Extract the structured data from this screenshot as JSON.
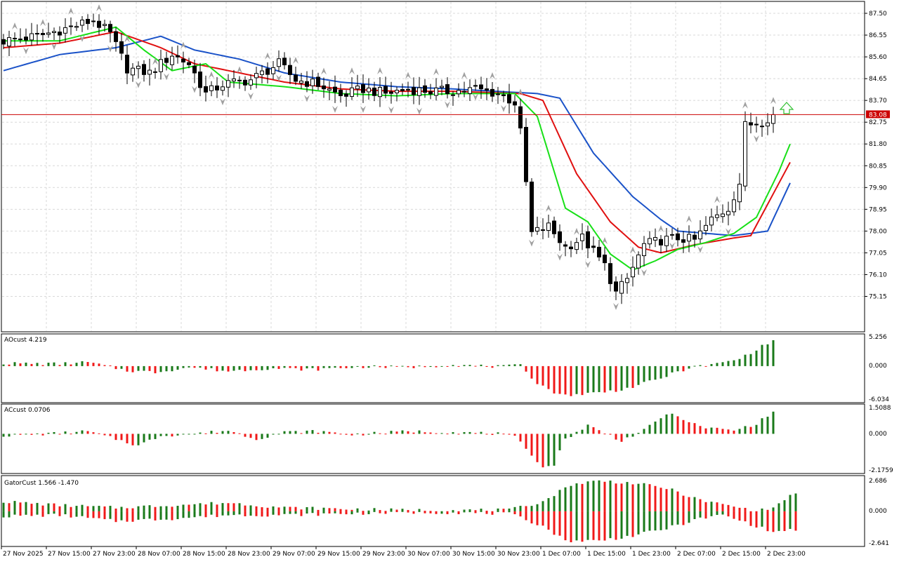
{
  "colors": {
    "background": "#ffffff",
    "grid": "#d8d8d8",
    "frame": "#000000",
    "bull_candle": "#ffffff",
    "bear_candle": "#000000",
    "jaw": "#1a52c8",
    "teeth": "#e01010",
    "lips": "#18e018",
    "price_line": "#cc0000",
    "price_tag": "#cc0000",
    "histo_up": "#1a7a1a",
    "histo_down": "#f01818",
    "fractal": "#a0a0a0",
    "signal_arrow": "#30c030"
  },
  "main_panel": {
    "price_tag": "83.08",
    "y_ticks": [
      "87.50",
      "86.55",
      "85.60",
      "84.65",
      "83.70",
      "82.75",
      "81.80",
      "80.85",
      "79.90",
      "78.95",
      "78.00",
      "77.05",
      "76.10",
      "75.15"
    ]
  },
  "ao_panel": {
    "label": "AOcust 4.219",
    "y_ticks": [
      "5.256",
      "0.000",
      "-6.034"
    ]
  },
  "ac_panel": {
    "label": "ACcust 0.0706",
    "y_ticks": [
      "1.5088",
      "0.000",
      "-2.1759"
    ]
  },
  "gator_panel": {
    "label": "GatorCust 1.566 -1.470",
    "y_ticks": [
      "2.686",
      "0.000",
      "-2.641"
    ]
  },
  "x_axis": {
    "labels": [
      "27 Nov 2025",
      "27 Nov 15:00",
      "27 Nov 23:00",
      "28 Nov 07:00",
      "28 Nov 15:00",
      "28 Nov 23:00",
      "29 Nov 07:00",
      "29 Nov 15:00",
      "29 Nov 23:00",
      "30 Nov 07:00",
      "30 Nov 15:00",
      "30 Nov 23:00",
      "1 Dec 07:00",
      "1 Dec 15:00",
      "1 Dec 23:00",
      "2 Dec 07:00",
      "2 Dec 15:00",
      "2 Dec 23:00"
    ]
  },
  "chart_data": [
    {
      "type": "candlestick",
      "name": "price",
      "ylim": [
        74.7,
        87.9
      ],
      "bars_count": 141,
      "close_anchors": [
        [
          0,
          86.3
        ],
        [
          6,
          86.5
        ],
        [
          12,
          86.9
        ],
        [
          16,
          87.2
        ],
        [
          19,
          86.6
        ],
        [
          22,
          85.1
        ],
        [
          26,
          84.9
        ],
        [
          30,
          85.7
        ],
        [
          33,
          85.3
        ],
        [
          36,
          84.0
        ],
        [
          39,
          84.4
        ],
        [
          44,
          84.6
        ],
        [
          49,
          85.3
        ],
        [
          52,
          84.6
        ],
        [
          56,
          84.4
        ],
        [
          60,
          83.9
        ],
        [
          64,
          84.2
        ],
        [
          68,
          84.0
        ],
        [
          72,
          84.2
        ],
        [
          76,
          84.1
        ],
        [
          80,
          84.1
        ],
        [
          84,
          84.2
        ],
        [
          88,
          84.0
        ],
        [
          91,
          83.6
        ],
        [
          92,
          82.3
        ],
        [
          94,
          77.9
        ],
        [
          97,
          78.2
        ],
        [
          100,
          77.3
        ],
        [
          103,
          77.7
        ],
        [
          107,
          76.5
        ],
        [
          109,
          75.3
        ],
        [
          111,
          75.9
        ],
        [
          114,
          77.4
        ],
        [
          117,
          77.6
        ],
        [
          120,
          77.7
        ],
        [
          123,
          77.6
        ],
        [
          126,
          78.5
        ],
        [
          129,
          79.0
        ],
        [
          131,
          80.1
        ],
        [
          132,
          82.6
        ],
        [
          135,
          82.8
        ],
        [
          137,
          83.08
        ]
      ],
      "alligator": {
        "jaw": [
          [
            0,
            85.0
          ],
          [
            10,
            85.7
          ],
          [
            20,
            86.0
          ],
          [
            28,
            86.5
          ],
          [
            34,
            85.9
          ],
          [
            42,
            85.5
          ],
          [
            50,
            84.9
          ],
          [
            60,
            84.5
          ],
          [
            70,
            84.3
          ],
          [
            80,
            84.2
          ],
          [
            95,
            84.0
          ],
          [
            99,
            83.8
          ],
          [
            105,
            81.4
          ],
          [
            112,
            79.5
          ],
          [
            117,
            78.5
          ],
          [
            120,
            78.0
          ],
          [
            125,
            77.9
          ],
          [
            130,
            77.8
          ],
          [
            136,
            78.0
          ],
          [
            140,
            80.1
          ]
        ],
        "teeth": [
          [
            0,
            86.0
          ],
          [
            10,
            86.2
          ],
          [
            20,
            86.7
          ],
          [
            28,
            86.0
          ],
          [
            34,
            85.3
          ],
          [
            42,
            84.9
          ],
          [
            50,
            84.5
          ],
          [
            60,
            84.2
          ],
          [
            70,
            84.1
          ],
          [
            80,
            84.1
          ],
          [
            92,
            84.0
          ],
          [
            96,
            83.7
          ],
          [
            102,
            80.5
          ],
          [
            108,
            78.4
          ],
          [
            113,
            77.3
          ],
          [
            117,
            77.05
          ],
          [
            123,
            77.4
          ],
          [
            130,
            77.7
          ],
          [
            133,
            77.8
          ],
          [
            140,
            81.0
          ]
        ],
        "lips": [
          [
            0,
            86.3
          ],
          [
            10,
            86.3
          ],
          [
            20,
            86.9
          ],
          [
            25,
            85.9
          ],
          [
            30,
            85.0
          ],
          [
            36,
            85.3
          ],
          [
            40,
            84.5
          ],
          [
            50,
            84.3
          ],
          [
            60,
            84.0
          ],
          [
            70,
            83.9
          ],
          [
            80,
            84.0
          ],
          [
            91,
            84.0
          ],
          [
            95,
            83.0
          ],
          [
            100,
            79.0
          ],
          [
            104,
            78.4
          ],
          [
            108,
            77.0
          ],
          [
            112,
            76.3
          ],
          [
            116,
            76.7
          ],
          [
            120,
            77.2
          ],
          [
            125,
            77.5
          ],
          [
            130,
            77.9
          ],
          [
            134,
            78.6
          ],
          [
            138,
            80.6
          ],
          [
            140,
            81.8
          ]
        ]
      }
    },
    {
      "type": "histogram",
      "name": "AOcust",
      "ylim": [
        -6.034,
        5.256
      ],
      "anchors": [
        [
          0,
          0.5
        ],
        [
          10,
          0.4
        ],
        [
          15,
          0.7
        ],
        [
          22,
          -0.8
        ],
        [
          27,
          -1.1
        ],
        [
          33,
          -0.2
        ],
        [
          40,
          -0.9
        ],
        [
          47,
          -0.4
        ],
        [
          55,
          -0.6
        ],
        [
          64,
          -0.1
        ],
        [
          72,
          -0.2
        ],
        [
          80,
          0.2
        ],
        [
          88,
          -0.1
        ],
        [
          92,
          0.1
        ],
        [
          95,
          -3.0
        ],
        [
          99,
          -5.2
        ],
        [
          103,
          -5.0
        ],
        [
          108,
          -4.5
        ],
        [
          111,
          -4.0
        ],
        [
          116,
          -2.5
        ],
        [
          122,
          -0.3
        ],
        [
          127,
          0.4
        ],
        [
          131,
          1.3
        ],
        [
          134,
          3.0
        ],
        [
          137,
          4.6
        ],
        [
          140,
          4.219
        ]
      ],
      "last_value": 4.219
    },
    {
      "type": "histogram",
      "name": "ACcust",
      "ylim": [
        -2.1759,
        1.5088
      ],
      "anchors": [
        [
          0,
          -0.1
        ],
        [
          8,
          0.0
        ],
        [
          15,
          0.15
        ],
        [
          21,
          -0.4
        ],
        [
          24,
          -0.7
        ],
        [
          28,
          -0.1
        ],
        [
          34,
          0.0
        ],
        [
          40,
          0.2
        ],
        [
          45,
          -0.3
        ],
        [
          50,
          0.1
        ],
        [
          56,
          0.15
        ],
        [
          62,
          -0.05
        ],
        [
          72,
          0.15
        ],
        [
          80,
          0.1
        ],
        [
          88,
          0.0
        ],
        [
          91,
          -0.2
        ],
        [
          94,
          -1.2
        ],
        [
          96,
          -2.0
        ],
        [
          98,
          -1.8
        ],
        [
          100,
          -0.3
        ],
        [
          104,
          0.5
        ],
        [
          107,
          0.05
        ],
        [
          110,
          -0.4
        ],
        [
          114,
          0.2
        ],
        [
          118,
          1.2
        ],
        [
          121,
          0.9
        ],
        [
          124,
          0.4
        ],
        [
          130,
          0.2
        ],
        [
          134,
          0.6
        ],
        [
          137,
          1.3
        ],
        [
          139,
          0.3
        ],
        [
          140,
          0.0706
        ]
      ],
      "last_value": 0.0706
    },
    {
      "type": "histogram",
      "name": "GatorCust",
      "ylim": [
        -2.641,
        2.686
      ],
      "upper_anchors": [
        [
          0,
          0.8
        ],
        [
          10,
          0.5
        ],
        [
          20,
          0.3
        ],
        [
          30,
          0.5
        ],
        [
          40,
          0.7
        ],
        [
          50,
          0.3
        ],
        [
          60,
          0.2
        ],
        [
          70,
          0.1
        ],
        [
          80,
          0.1
        ],
        [
          90,
          0.1
        ],
        [
          96,
          0.8
        ],
        [
          101,
          2.2
        ],
        [
          106,
          2.5
        ],
        [
          112,
          2.3
        ],
        [
          118,
          1.9
        ],
        [
          124,
          0.9
        ],
        [
          130,
          0.4
        ],
        [
          134,
          0.0
        ],
        [
          137,
          0.3
        ],
        [
          141,
          1.566
        ]
      ],
      "lower_anchors": [
        [
          0,
          -0.4
        ],
        [
          10,
          -0.3
        ],
        [
          20,
          -0.8
        ],
        [
          30,
          -0.6
        ],
        [
          40,
          -0.3
        ],
        [
          50,
          -0.3
        ],
        [
          60,
          -0.2
        ],
        [
          70,
          -0.1
        ],
        [
          80,
          -0.1
        ],
        [
          90,
          -0.2
        ],
        [
          96,
          -1.2
        ],
        [
          100,
          -2.4
        ],
        [
          106,
          -2.4
        ],
        [
          112,
          -2.0
        ],
        [
          118,
          -1.4
        ],
        [
          124,
          -0.6
        ],
        [
          128,
          -0.3
        ],
        [
          132,
          -0.9
        ],
        [
          137,
          -1.7
        ],
        [
          141,
          -1.47
        ]
      ],
      "last_upper": 1.566,
      "last_lower": -1.47
    }
  ]
}
